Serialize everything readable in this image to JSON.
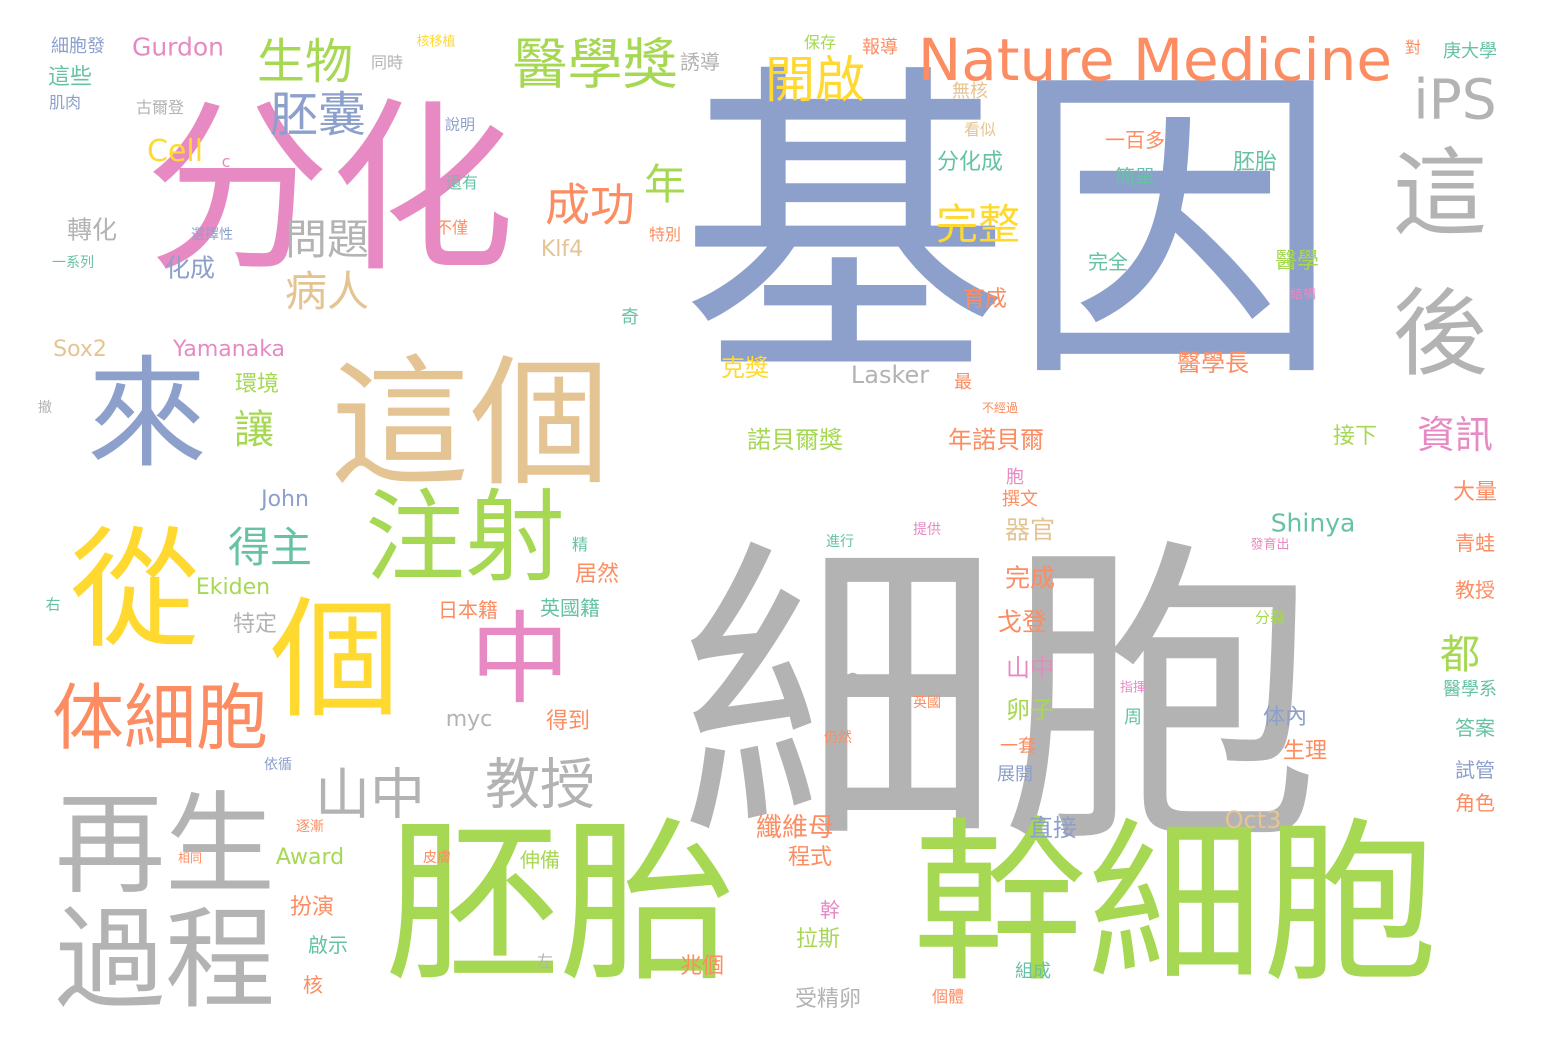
{
  "palette": {
    "pink": "#e78ac3",
    "blue": "#8da0cb",
    "gray": "#b3b3b3",
    "green": "#a6d854",
    "yellow": "#ffd92f",
    "tan": "#e5c494",
    "orange": "#fc8d62",
    "teal": "#66c2a5"
  },
  "words": [
    {
      "text": "基因",
      "color": "blue"
    },
    {
      "text": "細胞",
      "color": "gray"
    },
    {
      "text": "分化",
      "color": "pink"
    },
    {
      "text": "胚胎",
      "color": "green"
    },
    {
      "text": "幹細胞",
      "color": "green"
    },
    {
      "text": "個",
      "color": "yellow"
    },
    {
      "text": "這個",
      "color": "tan"
    },
    {
      "text": "來",
      "color": "blue"
    },
    {
      "text": "從",
      "color": "yellow"
    },
    {
      "text": "再生",
      "color": "gray"
    },
    {
      "text": "過程",
      "color": "gray"
    },
    {
      "text": "注射",
      "color": "green"
    },
    {
      "text": "中",
      "color": "pink"
    },
    {
      "text": "這",
      "color": "gray"
    },
    {
      "text": "後",
      "color": "gray"
    },
    {
      "text": "体細胞",
      "color": "orange"
    },
    {
      "text": "Nature Medicine",
      "color": "orange"
    },
    {
      "text": "醫學獎",
      "color": "green"
    },
    {
      "text": "生物",
      "color": "green"
    },
    {
      "text": "胚囊",
      "color": "blue"
    },
    {
      "text": "開啟",
      "color": "yellow"
    },
    {
      "text": "iPS",
      "color": "gray"
    },
    {
      "text": "山中",
      "color": "gray"
    },
    {
      "text": "教授",
      "color": "gray"
    },
    {
      "text": "成功",
      "color": "orange"
    },
    {
      "text": "年",
      "color": "green"
    },
    {
      "text": "問題",
      "color": "gray"
    },
    {
      "text": "病人",
      "color": "tan"
    },
    {
      "text": "完整",
      "color": "yellow"
    },
    {
      "text": "得主",
      "color": "teal"
    },
    {
      "text": "讓",
      "color": "green"
    },
    {
      "text": "資訊",
      "color": "pink"
    },
    {
      "text": "都",
      "color": "green"
    },
    {
      "text": "Cell",
      "color": "yellow"
    },
    {
      "text": "Gurdon",
      "color": "pink"
    },
    {
      "text": "轉化",
      "color": "gray"
    },
    {
      "text": "化成",
      "color": "blue"
    },
    {
      "text": "這些",
      "color": "teal"
    },
    {
      "text": "Sox2",
      "color": "tan"
    },
    {
      "text": "Yamanaka",
      "color": "pink"
    },
    {
      "text": "環境",
      "color": "green"
    },
    {
      "text": "John",
      "color": "blue"
    },
    {
      "text": "Ekiden",
      "color": "green"
    },
    {
      "text": "特定",
      "color": "gray"
    },
    {
      "text": "Award",
      "color": "green"
    },
    {
      "text": "扮演",
      "color": "orange"
    },
    {
      "text": "啟示",
      "color": "teal"
    },
    {
      "text": "核",
      "color": "orange"
    },
    {
      "text": "myc",
      "color": "gray"
    },
    {
      "text": "得到",
      "color": "orange"
    },
    {
      "text": "居然",
      "color": "orange"
    },
    {
      "text": "英國籍",
      "color": "teal"
    },
    {
      "text": "日本籍",
      "color": "orange"
    },
    {
      "text": "Klf4",
      "color": "tan"
    },
    {
      "text": "分化成",
      "color": "teal"
    },
    {
      "text": "克獎",
      "color": "yellow"
    },
    {
      "text": "Lasker",
      "color": "gray"
    },
    {
      "text": "諾貝爾獎",
      "color": "green"
    },
    {
      "text": "年諾貝爾",
      "color": "orange"
    },
    {
      "text": "纖維母",
      "color": "orange"
    },
    {
      "text": "程式",
      "color": "orange"
    },
    {
      "text": "幹",
      "color": "pink"
    },
    {
      "text": "拉斯",
      "color": "green"
    },
    {
      "text": "兆個",
      "color": "orange"
    },
    {
      "text": "受精卵",
      "color": "gray"
    },
    {
      "text": "伸備",
      "color": "green"
    },
    {
      "text": "to",
      "color": "gray"
    },
    {
      "text": "Shinya",
      "color": "teal"
    },
    {
      "text": "器官",
      "color": "tan"
    },
    {
      "text": "完成",
      "color": "orange"
    },
    {
      "text": "戈登",
      "color": "orange"
    },
    {
      "text": "山中",
      "color": "pink"
    },
    {
      "text": "卵子",
      "color": "green"
    },
    {
      "text": "直接",
      "color": "blue"
    },
    {
      "text": "Oct3",
      "color": "tan"
    },
    {
      "text": "胚胎",
      "color": "teal"
    },
    {
      "text": "簡單",
      "color": "teal"
    },
    {
      "text": "完全",
      "color": "teal"
    },
    {
      "text": "醫學",
      "color": "green"
    },
    {
      "text": "醫學長",
      "color": "orange"
    },
    {
      "text": "育成",
      "color": "orange"
    },
    {
      "text": "接下",
      "color": "green"
    },
    {
      "text": "体內",
      "color": "blue"
    },
    {
      "text": "生理",
      "color": "orange"
    },
    {
      "text": "大量",
      "color": "orange"
    },
    {
      "text": "青蛙",
      "color": "orange"
    },
    {
      "text": "教授",
      "color": "orange"
    },
    {
      "text": "答案",
      "color": "teal"
    },
    {
      "text": "試管",
      "color": "blue"
    },
    {
      "text": "角色",
      "color": "orange"
    },
    {
      "text": "一百多",
      "color": "orange"
    },
    {
      "text": "無核",
      "color": "tan"
    },
    {
      "text": "看似",
      "color": "tan"
    },
    {
      "text": "庚大學",
      "color": "teal"
    },
    {
      "text": "對",
      "color": "orange"
    },
    {
      "text": "報導",
      "color": "orange"
    },
    {
      "text": "保存",
      "color": "green"
    },
    {
      "text": "誘導",
      "color": "gray"
    },
    {
      "text": "同時",
      "color": "gray"
    },
    {
      "text": "細胞發",
      "color": "blue"
    },
    {
      "text": "肌肉",
      "color": "blue"
    },
    {
      "text": "古爾登",
      "color": "gray"
    },
    {
      "text": "一系列",
      "color": "teal"
    },
    {
      "text": "選擇性",
      "color": "blue"
    },
    {
      "text": "特別",
      "color": "orange"
    },
    {
      "text": "不僅",
      "color": "orange"
    },
    {
      "text": "還有",
      "color": "teal"
    },
    {
      "text": "說明",
      "color": "blue"
    },
    {
      "text": "撰文",
      "color": "orange"
    },
    {
      "text": "周",
      "color": "teal"
    },
    {
      "text": "一套",
      "color": "orange"
    },
    {
      "text": "展開",
      "color": "blue"
    },
    {
      "text": "最",
      "color": "orange"
    },
    {
      "text": "醫學系",
      "color": "teal"
    },
    {
      "text": "胞",
      "color": "pink"
    },
    {
      "text": "奇",
      "color": "teal"
    },
    {
      "text": "精",
      "color": "teal"
    },
    {
      "text": "組成",
      "color": "teal"
    },
    {
      "text": "個體",
      "color": "orange"
    },
    {
      "text": "左",
      "color": "gray"
    },
    {
      "text": "右",
      "color": "teal"
    },
    {
      "text": "分裂",
      "color": "green"
    },
    {
      "text": "c",
      "color": "pink"
    },
    {
      "text": "核移植",
      "color": "yellow"
    },
    {
      "text": "發育出",
      "color": "pink"
    },
    {
      "text": "指揮",
      "color": "pink"
    },
    {
      "text": "結構",
      "color": "pink"
    },
    {
      "text": "提供",
      "color": "pink"
    },
    {
      "text": "進行",
      "color": "teal"
    },
    {
      "text": "英國",
      "color": "orange"
    },
    {
      "text": "仍然",
      "color": "orange"
    },
    {
      "text": "撤",
      "color": "gray"
    },
    {
      "text": "不經過",
      "color": "orange"
    },
    {
      "text": "依循",
      "color": "blue"
    },
    {
      "text": "逐漸",
      "color": "orange"
    },
    {
      "text": "皮膚",
      "color": "orange"
    },
    {
      "text": "相同",
      "color": "orange"
    }
  ]
}
